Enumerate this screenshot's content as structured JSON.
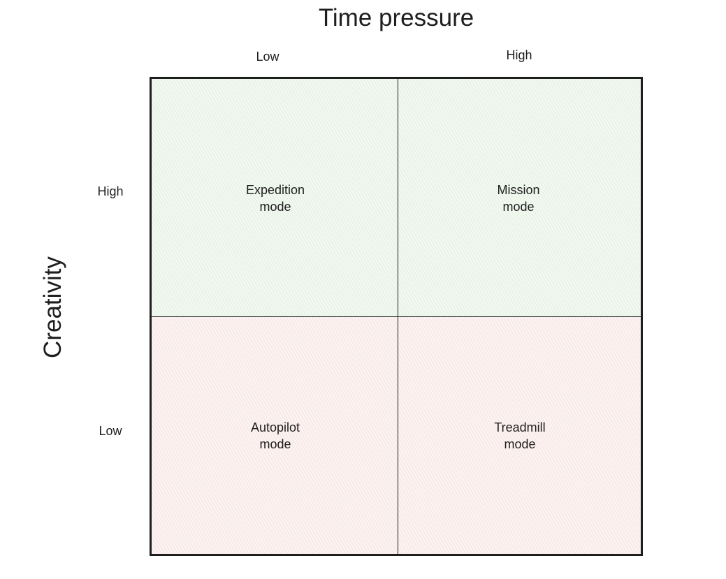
{
  "x_axis": {
    "title": "Time pressure",
    "low_label": "Low",
    "high_label": "High"
  },
  "y_axis": {
    "title": "Creativity",
    "high_label": "High",
    "low_label": "Low"
  },
  "quadrants": {
    "top_left": {
      "line1": "Expedition",
      "line2": "mode",
      "fill": "#f1f8f0"
    },
    "top_right": {
      "line1": "Mission",
      "line2": "mode",
      "fill": "#f1f8f0"
    },
    "bottom_left": {
      "line1": "Autopilot",
      "line2": "mode",
      "fill": "#fbf2f1"
    },
    "bottom_right": {
      "line1": "Treadmill",
      "line2": "mode",
      "fill": "#fbf2f1"
    }
  },
  "colors": {
    "stroke": "#1e1e1e",
    "high_creativity_fill": "#f1f8f0",
    "low_creativity_fill": "#fbf2f1"
  }
}
